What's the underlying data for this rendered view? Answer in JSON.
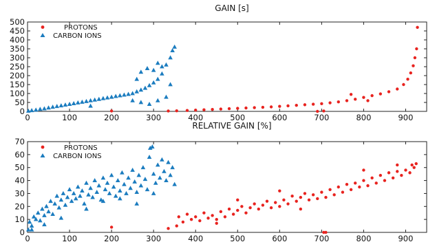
{
  "colors": {
    "protons": "#e8231f",
    "carbon": "#1b7cbf"
  },
  "chart_data": [
    {
      "type": "scatter",
      "title": "GAIN [s]",
      "xlabel": "",
      "ylabel": "",
      "xlim": [
        0,
        950
      ],
      "ylim": [
        0,
        500
      ],
      "xticks": [
        0,
        100,
        200,
        300,
        400,
        500,
        600,
        700,
        800,
        900
      ],
      "yticks": [
        0,
        50,
        100,
        150,
        200,
        250,
        300,
        350,
        400,
        450,
        500
      ],
      "grid": false,
      "legend": "top-left",
      "series": [
        {
          "name": "PROTONS",
          "marker": "circle",
          "points": [
            [
              355,
              3
            ],
            [
              380,
              5
            ],
            [
              400,
              7
            ],
            [
              420,
              9
            ],
            [
              440,
              11
            ],
            [
              460,
              13
            ],
            [
              480,
              15
            ],
            [
              500,
              17
            ],
            [
              520,
              19
            ],
            [
              540,
              21
            ],
            [
              560,
              23
            ],
            [
              580,
              25
            ],
            [
              600,
              28
            ],
            [
              620,
              31
            ],
            [
              640,
              34
            ],
            [
              660,
              37
            ],
            [
              680,
              40
            ],
            [
              700,
              43
            ],
            [
              720,
              48
            ],
            [
              740,
              53
            ],
            [
              760,
              60
            ],
            [
              780,
              68
            ],
            [
              800,
              78
            ],
            [
              820,
              88
            ],
            [
              840,
              98
            ],
            [
              860,
              110
            ],
            [
              880,
              125
            ],
            [
              895,
              150
            ],
            [
              905,
              180
            ],
            [
              912,
              215
            ],
            [
              918,
              255
            ],
            [
              922,
              300
            ],
            [
              926,
              350
            ],
            [
              928,
              470
            ],
            [
              705,
              2
            ],
            [
              690,
              0
            ],
            [
              200,
              2
            ],
            [
              335,
              2
            ],
            [
              810,
              60
            ],
            [
              770,
              95
            ]
          ]
        },
        {
          "name": "CARBON IONS",
          "marker": "triangle",
          "points": [
            [
              2,
              2
            ],
            [
              10,
              5
            ],
            [
              20,
              8
            ],
            [
              30,
              12
            ],
            [
              40,
              15
            ],
            [
              50,
              20
            ],
            [
              60,
              24
            ],
            [
              70,
              28
            ],
            [
              80,
              32
            ],
            [
              90,
              36
            ],
            [
              100,
              40
            ],
            [
              110,
              44
            ],
            [
              120,
              48
            ],
            [
              130,
              52
            ],
            [
              140,
              56
            ],
            [
              150,
              60
            ],
            [
              160,
              64
            ],
            [
              170,
              68
            ],
            [
              180,
              72
            ],
            [
              190,
              76
            ],
            [
              200,
              80
            ],
            [
              210,
              84
            ],
            [
              220,
              88
            ],
            [
              230,
              92
            ],
            [
              240,
              96
            ],
            [
              250,
              100
            ],
            [
              260,
              110
            ],
            [
              270,
              120
            ],
            [
              280,
              130
            ],
            [
              290,
              145
            ],
            [
              300,
              160
            ],
            [
              310,
              180
            ],
            [
              320,
              210
            ],
            [
              330,
              260
            ],
            [
              340,
              300
            ],
            [
              345,
              340
            ],
            [
              350,
              360
            ],
            [
              260,
              180
            ],
            [
              270,
              220
            ],
            [
              285,
              240
            ],
            [
              300,
              230
            ],
            [
              310,
              270
            ],
            [
              320,
              250
            ],
            [
              250,
              60
            ],
            [
              270,
              50
            ],
            [
              290,
              40
            ],
            [
              310,
              60
            ],
            [
              330,
              80
            ],
            [
              340,
              150
            ],
            [
              150,
              30
            ]
          ]
        }
      ]
    },
    {
      "type": "scatter",
      "title": "RELATIVE GAIN [%]",
      "xlabel": "",
      "ylabel": "",
      "xlim": [
        0,
        950
      ],
      "ylim": [
        0,
        70
      ],
      "xticks": [
        0,
        100,
        200,
        300,
        400,
        500,
        600,
        700,
        800,
        900
      ],
      "yticks": [
        0,
        10,
        20,
        30,
        40,
        50,
        60,
        70
      ],
      "grid": false,
      "legend": "top-left",
      "series": [
        {
          "name": "PROTONS",
          "marker": "circle",
          "points": [
            [
              355,
              5
            ],
            [
              360,
              12
            ],
            [
              370,
              8
            ],
            [
              380,
              14
            ],
            [
              390,
              10
            ],
            [
              400,
              12
            ],
            [
              410,
              9
            ],
            [
              420,
              15
            ],
            [
              430,
              11
            ],
            [
              440,
              13
            ],
            [
              450,
              10
            ],
            [
              460,
              16
            ],
            [
              470,
              12
            ],
            [
              480,
              18
            ],
            [
              490,
              14
            ],
            [
              500,
              17
            ],
            [
              510,
              20
            ],
            [
              520,
              15
            ],
            [
              530,
              19
            ],
            [
              540,
              22
            ],
            [
              550,
              18
            ],
            [
              560,
              21
            ],
            [
              570,
              24
            ],
            [
              580,
              19
            ],
            [
              590,
              23
            ],
            [
              600,
              20
            ],
            [
              610,
              25
            ],
            [
              620,
              22
            ],
            [
              630,
              28
            ],
            [
              640,
              24
            ],
            [
              650,
              27
            ],
            [
              660,
              30
            ],
            [
              670,
              25
            ],
            [
              680,
              29
            ],
            [
              690,
              26
            ],
            [
              700,
              31
            ],
            [
              710,
              27
            ],
            [
              720,
              33
            ],
            [
              730,
              29
            ],
            [
              740,
              35
            ],
            [
              750,
              31
            ],
            [
              760,
              37
            ],
            [
              770,
              33
            ],
            [
              780,
              38
            ],
            [
              790,
              35
            ],
            [
              800,
              40
            ],
            [
              810,
              36
            ],
            [
              820,
              42
            ],
            [
              830,
              38
            ],
            [
              840,
              44
            ],
            [
              850,
              40
            ],
            [
              860,
              46
            ],
            [
              870,
              42
            ],
            [
              880,
              47
            ],
            [
              890,
              44
            ],
            [
              900,
              48
            ],
            [
              910,
              46
            ],
            [
              915,
              52
            ],
            [
              920,
              50
            ],
            [
              925,
              53
            ],
            [
              705,
              0
            ],
            [
              710,
              0
            ],
            [
              335,
              3
            ],
            [
              200,
              4
            ],
            [
              880,
              52
            ],
            [
              800,
              48
            ],
            [
              600,
              32
            ],
            [
              500,
              25
            ],
            [
              450,
              7
            ],
            [
              650,
              18
            ]
          ]
        },
        {
          "name": "CARBON IONS",
          "marker": "triangle",
          "points": [
            [
              2,
              2
            ],
            [
              5,
              8
            ],
            [
              10,
              5
            ],
            [
              15,
              12
            ],
            [
              20,
              10
            ],
            [
              25,
              15
            ],
            [
              30,
              9
            ],
            [
              35,
              18
            ],
            [
              40,
              13
            ],
            [
              45,
              20
            ],
            [
              50,
              16
            ],
            [
              55,
              24
            ],
            [
              60,
              14
            ],
            [
              65,
              22
            ],
            [
              70,
              28
            ],
            [
              75,
              19
            ],
            [
              80,
              25
            ],
            [
              85,
              30
            ],
            [
              90,
              21
            ],
            [
              95,
              27
            ],
            [
              100,
              33
            ],
            [
              105,
              24
            ],
            [
              110,
              30
            ],
            [
              115,
              26
            ],
            [
              120,
              35
            ],
            [
              125,
              28
            ],
            [
              130,
              32
            ],
            [
              135,
              22
            ],
            [
              140,
              38
            ],
            [
              145,
              29
            ],
            [
              150,
              34
            ],
            [
              155,
              27
            ],
            [
              160,
              40
            ],
            [
              165,
              31
            ],
            [
              170,
              36
            ],
            [
              175,
              25
            ],
            [
              180,
              42
            ],
            [
              185,
              33
            ],
            [
              190,
              38
            ],
            [
              195,
              30
            ],
            [
              200,
              44
            ],
            [
              205,
              35
            ],
            [
              210,
              28
            ],
            [
              215,
              40
            ],
            [
              220,
              32
            ],
            [
              225,
              46
            ],
            [
              230,
              37
            ],
            [
              235,
              30
            ],
            [
              240,
              42
            ],
            [
              245,
              34
            ],
            [
              250,
              48
            ],
            [
              255,
              39
            ],
            [
              260,
              31
            ],
            [
              265,
              44
            ],
            [
              270,
              36
            ],
            [
              275,
              50
            ],
            [
              280,
              41
            ],
            [
              285,
              33
            ],
            [
              290,
              58
            ],
            [
              292,
              65
            ],
            [
              297,
              66
            ],
            [
              300,
              45
            ],
            [
              305,
              38
            ],
            [
              310,
              52
            ],
            [
              315,
              42
            ],
            [
              320,
              56
            ],
            [
              325,
              47
            ],
            [
              330,
              40
            ],
            [
              335,
              54
            ],
            [
              340,
              44
            ],
            [
              345,
              50
            ],
            [
              350,
              37
            ],
            [
              10,
              2
            ],
            [
              40,
              6
            ],
            [
              80,
              11
            ],
            [
              140,
              18
            ],
            [
              180,
              24
            ],
            [
              220,
              26
            ],
            [
              260,
              22
            ],
            [
              300,
              30
            ]
          ]
        }
      ]
    }
  ]
}
